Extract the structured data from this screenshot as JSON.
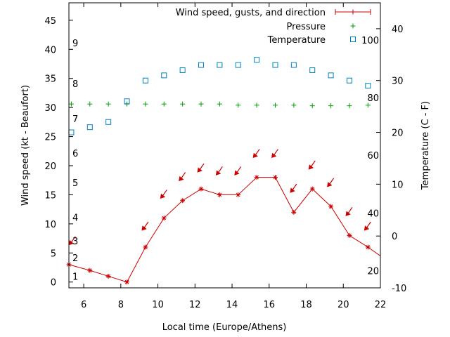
{
  "chart_data": {
    "type": "line",
    "xlabel": "Local time (Europe/Athens)",
    "ylabel_left": "Wind speed (kt - Beaufort)",
    "ylabel_right": "Temperature (C - F)",
    "xlim": [
      5.2,
      22
    ],
    "ylim_left": [
      -1,
      48
    ],
    "ylim_right": [
      -10,
      45
    ],
    "x_ticks": [
      6,
      8,
      10,
      12,
      14,
      16,
      18,
      20,
      22
    ],
    "y_left_ticks": [
      0,
      5,
      10,
      15,
      20,
      25,
      30,
      35,
      40,
      45
    ],
    "y_right_ticks": [
      -10,
      0,
      10,
      20,
      30,
      40
    ],
    "beaufort_labels": [
      {
        "label": "1",
        "kt": 1
      },
      {
        "label": "2",
        "kt": 4.2
      },
      {
        "label": "3",
        "kt": 7.1
      },
      {
        "label": "4",
        "kt": 11.1
      },
      {
        "label": "5",
        "kt": 17.1
      },
      {
        "label": "6",
        "kt": 22.2
      },
      {
        "label": "7",
        "kt": 28.1
      },
      {
        "label": "8",
        "kt": 34.1
      },
      {
        "label": "9",
        "kt": 41.1
      }
    ],
    "fahrenheit_labels": [
      {
        "label": "20",
        "c": -6.7
      },
      {
        "label": "40",
        "c": 4.4
      },
      {
        "label": "60",
        "c": 15.6
      },
      {
        "label": "80",
        "c": 26.7
      },
      {
        "label": "100",
        "c": 37.8
      }
    ],
    "legend_position": "top-right",
    "series": [
      {
        "name": "Wind speed, gusts, and direction",
        "color": "#cc0000",
        "x": [
          5.2,
          6.33,
          7.33,
          8.33,
          9.33,
          10.33,
          11.33,
          12.33,
          13.33,
          14.33,
          15.33,
          16.33,
          17.33,
          18.33,
          19.33,
          20.33,
          21.33,
          22
        ],
        "y": [
          3,
          2,
          1,
          0,
          6,
          11,
          14,
          16,
          15,
          15,
          18,
          18,
          12,
          16,
          13,
          8,
          6,
          4.5
        ],
        "direction_arrows": [
          {
            "x": 5.4,
            "y": 7
          },
          {
            "x": 9.33,
            "y": 9.5
          },
          {
            "x": 10.33,
            "y": 15
          },
          {
            "x": 11.33,
            "y": 18
          },
          {
            "x": 12.33,
            "y": 19.5
          },
          {
            "x": 13.33,
            "y": 19
          },
          {
            "x": 14.33,
            "y": 19
          },
          {
            "x": 15.33,
            "y": 22
          },
          {
            "x": 16.33,
            "y": 22
          },
          {
            "x": 17.33,
            "y": 16
          },
          {
            "x": 18.33,
            "y": 20
          },
          {
            "x": 19.33,
            "y": 17
          },
          {
            "x": 20.33,
            "y": 12
          },
          {
            "x": 21.33,
            "y": 9.5
          }
        ]
      },
      {
        "name": "Pressure",
        "color": "#00a000",
        "x": [
          5.33,
          6.33,
          7.33,
          8.33,
          9.33,
          10.33,
          11.33,
          12.33,
          13.33,
          14.33,
          15.33,
          16.33,
          17.33,
          18.33,
          19.33,
          20.33,
          21.33
        ],
        "y": [
          30.6,
          30.6,
          30.6,
          30.6,
          30.6,
          30.6,
          30.6,
          30.6,
          30.6,
          30.4,
          30.4,
          30.4,
          30.4,
          30.3,
          30.3,
          30.3,
          30.4
        ]
      },
      {
        "name": "Temperature",
        "color": "#0080c0",
        "x": [
          5.33,
          6.33,
          7.33,
          8.33,
          9.33,
          10.33,
          11.33,
          12.33,
          13.33,
          14.33,
          15.33,
          16.33,
          17.33,
          18.33,
          19.33,
          20.33,
          21.33
        ],
        "y": [
          20,
          21,
          22,
          26,
          30,
          31,
          32,
          33,
          33,
          33,
          34,
          33,
          33,
          32,
          31,
          30,
          29
        ]
      }
    ]
  }
}
